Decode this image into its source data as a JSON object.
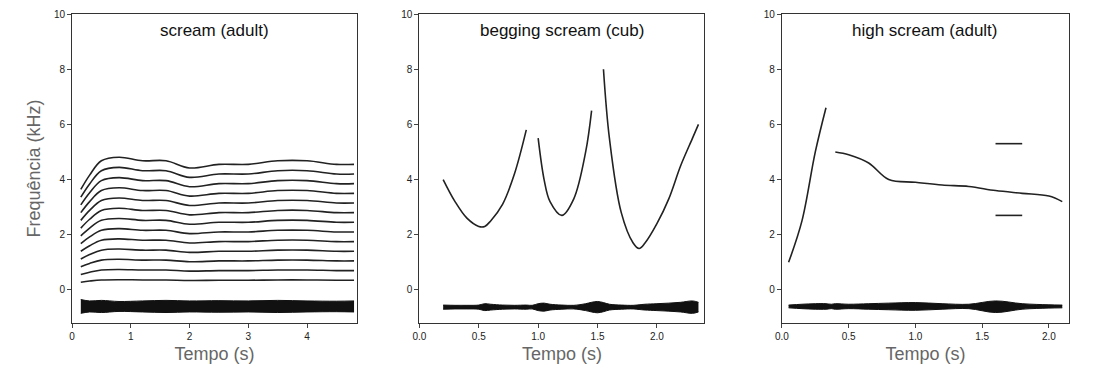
{
  "chart_data": [
    {
      "type": "line",
      "title": "scream (adult)",
      "xlabel": "Tempo (s)",
      "ylabel": "Frequência (kHz)",
      "xlim": [
        0,
        4.85
      ],
      "xticks": [
        0,
        1,
        2,
        3,
        4
      ],
      "ylim": [
        -1.2,
        10
      ],
      "yticks": [
        0,
        2,
        4,
        6,
        8,
        10
      ],
      "x": [
        0.15,
        0.3,
        0.5,
        0.8,
        1.2,
        1.6,
        2.0,
        2.5,
        3.0,
        3.5,
        4.0,
        4.5,
        4.8
      ],
      "series": [
        {
          "type": "line",
          "color": "#222222",
          "values": [
            0.28,
            0.32,
            0.36,
            0.37,
            0.36,
            0.36,
            0.34,
            0.35,
            0.35,
            0.36,
            0.36,
            0.35,
            0.35
          ]
        },
        {
          "type": "line",
          "color": "#222222",
          "values": [
            0.56,
            0.64,
            0.72,
            0.74,
            0.72,
            0.72,
            0.68,
            0.7,
            0.7,
            0.72,
            0.72,
            0.7,
            0.7
          ]
        },
        {
          "type": "line",
          "color": "#222222",
          "values": [
            0.84,
            0.96,
            1.08,
            1.11,
            1.08,
            1.08,
            1.02,
            1.05,
            1.05,
            1.08,
            1.08,
            1.05,
            1.05
          ]
        },
        {
          "type": "line",
          "color": "#222222",
          "values": [
            1.12,
            1.28,
            1.44,
            1.48,
            1.44,
            1.44,
            1.36,
            1.4,
            1.4,
            1.44,
            1.44,
            1.4,
            1.4
          ]
        },
        {
          "type": "line",
          "color": "#222222",
          "values": [
            1.4,
            1.6,
            1.8,
            1.85,
            1.8,
            1.8,
            1.7,
            1.75,
            1.75,
            1.8,
            1.8,
            1.75,
            1.75
          ]
        },
        {
          "type": "line",
          "color": "#222222",
          "values": [
            1.68,
            1.92,
            2.16,
            2.22,
            2.16,
            2.16,
            2.04,
            2.1,
            2.1,
            2.16,
            2.16,
            2.1,
            2.1
          ]
        },
        {
          "type": "line",
          "color": "#222222",
          "values": [
            1.96,
            2.24,
            2.52,
            2.59,
            2.52,
            2.52,
            2.38,
            2.45,
            2.45,
            2.52,
            2.52,
            2.45,
            2.45
          ]
        },
        {
          "type": "line",
          "color": "#222222",
          "values": [
            2.24,
            2.56,
            2.88,
            2.96,
            2.88,
            2.88,
            2.72,
            2.8,
            2.8,
            2.88,
            2.88,
            2.8,
            2.8
          ]
        },
        {
          "type": "line",
          "color": "#222222",
          "values": [
            2.52,
            2.88,
            3.24,
            3.33,
            3.24,
            3.24,
            3.06,
            3.15,
            3.15,
            3.24,
            3.24,
            3.15,
            3.15
          ]
        },
        {
          "type": "line",
          "color": "#222222",
          "values": [
            2.8,
            3.2,
            3.6,
            3.7,
            3.6,
            3.6,
            3.4,
            3.5,
            3.5,
            3.6,
            3.6,
            3.5,
            3.5
          ]
        },
        {
          "type": "line",
          "color": "#222222",
          "values": [
            3.08,
            3.52,
            3.96,
            4.07,
            3.96,
            3.96,
            3.74,
            3.85,
            3.85,
            3.96,
            3.96,
            3.85,
            3.85
          ]
        },
        {
          "type": "line",
          "color": "#222222",
          "values": [
            3.36,
            3.84,
            4.32,
            4.44,
            4.32,
            4.32,
            4.08,
            4.2,
            4.2,
            4.32,
            4.32,
            4.2,
            4.2
          ]
        },
        {
          "type": "line",
          "color": "#222222",
          "values": [
            3.64,
            4.16,
            4.68,
            4.81,
            4.68,
            4.68,
            4.42,
            4.55,
            4.55,
            4.68,
            4.68,
            4.55,
            4.55
          ]
        },
        {
          "type": "band",
          "color": "#111111",
          "values": [
            -0.35,
            -0.4,
            -0.38,
            -0.42,
            -0.4,
            -0.38,
            -0.4,
            -0.39,
            -0.4,
            -0.38,
            -0.4,
            -0.41,
            -0.4
          ]
        },
        {
          "type": "band",
          "color": "#111111",
          "values": [
            -0.85,
            -0.8,
            -0.82,
            -0.78,
            -0.8,
            -0.82,
            -0.8,
            -0.81,
            -0.8,
            -0.82,
            -0.8,
            -0.79,
            -0.8
          ]
        }
      ]
    },
    {
      "type": "line",
      "title": "begging scream (cub)",
      "xlabel": "Tempo (s)",
      "xlim": [
        0,
        2.4
      ],
      "xticks": [
        {
          "value": 0,
          "label": "0.0"
        },
        {
          "value": 0.5,
          "label": "0.5"
        },
        {
          "value": 1,
          "label": "1.0"
        },
        {
          "value": 1.5,
          "label": "1.5"
        },
        {
          "value": 2,
          "label": "2.0"
        }
      ],
      "ylim": [
        -1.2,
        10
      ],
      "yticks": [
        0,
        2,
        4,
        6,
        8,
        10
      ],
      "x": [
        0.2,
        0.3,
        0.4,
        0.5,
        0.55,
        0.6,
        0.7,
        0.8,
        0.9,
        0.95,
        1.0,
        1.05,
        1.1,
        1.2,
        1.3,
        1.4,
        1.45,
        1.5,
        1.55,
        1.6,
        1.7,
        1.8,
        1.85,
        1.9,
        2.0,
        2.1,
        2.2,
        2.3,
        2.35
      ],
      "series": [
        {
          "type": "line",
          "color": "#222222",
          "values": [
            4.0,
            3.2,
            2.6,
            2.3,
            2.3,
            2.5,
            3.1,
            4.2,
            5.8,
            null,
            5.5,
            4.0,
            3.2,
            2.7,
            3.3,
            5.0,
            6.5,
            null,
            8.0,
            5.5,
            2.8,
            1.7,
            1.5,
            1.7,
            2.4,
            3.3,
            4.5,
            5.5,
            6.0
          ]
        },
        {
          "type": "band",
          "color": "#111111",
          "values": [
            -0.55,
            -0.56,
            -0.56,
            -0.55,
            -0.5,
            -0.52,
            -0.55,
            -0.56,
            -0.55,
            -0.56,
            -0.5,
            -0.48,
            -0.52,
            -0.55,
            -0.56,
            -0.5,
            -0.45,
            -0.42,
            -0.46,
            -0.52,
            -0.55,
            -0.56,
            -0.54,
            -0.52,
            -0.5,
            -0.48,
            -0.45,
            -0.4,
            -0.45
          ]
        },
        {
          "type": "band",
          "color": "#111111",
          "values": [
            -0.7,
            -0.69,
            -0.69,
            -0.7,
            -0.75,
            -0.73,
            -0.7,
            -0.69,
            -0.7,
            -0.69,
            -0.75,
            -0.77,
            -0.73,
            -0.7,
            -0.69,
            -0.75,
            -0.8,
            -0.83,
            -0.79,
            -0.73,
            -0.7,
            -0.69,
            -0.71,
            -0.73,
            -0.75,
            -0.77,
            -0.8,
            -0.85,
            -0.8
          ]
        }
      ]
    },
    {
      "type": "line",
      "title": "high scream (adult)",
      "xlabel": "Tempo (s)",
      "xlim": [
        0,
        2.15
      ],
      "xticks": [
        {
          "value": 0,
          "label": "0.0"
        },
        {
          "value": 0.5,
          "label": "0.5"
        },
        {
          "value": 1,
          "label": "1.0"
        },
        {
          "value": 1.5,
          "label": "1.5"
        },
        {
          "value": 2,
          "label": "2.0"
        }
      ],
      "ylim": [
        -1.2,
        10
      ],
      "yticks": [
        0,
        2,
        4,
        6,
        8,
        10
      ],
      "x": [
        0.05,
        0.15,
        0.25,
        0.33,
        0.37,
        0.4,
        0.5,
        0.65,
        0.8,
        1.0,
        1.2,
        1.4,
        1.6,
        1.8,
        2.0,
        2.1
      ],
      "series": [
        {
          "type": "line",
          "color": "#222222",
          "values": [
            1.0,
            2.5,
            5.0,
            6.6,
            null,
            5.0,
            4.9,
            4.6,
            4.0,
            3.9,
            3.8,
            3.75,
            3.6,
            3.5,
            3.4,
            3.2
          ]
        },
        {
          "type": "line",
          "color": "#222222",
          "values": [
            null,
            null,
            null,
            null,
            null,
            null,
            null,
            null,
            null,
            null,
            null,
            null,
            5.3,
            5.3,
            null,
            null
          ]
        },
        {
          "type": "line",
          "color": "#222222",
          "values": [
            null,
            null,
            null,
            null,
            null,
            null,
            null,
            null,
            null,
            null,
            null,
            null,
            2.7,
            2.7,
            null,
            null
          ]
        },
        {
          "type": "band",
          "color": "#111111",
          "values": [
            -0.55,
            -0.52,
            -0.5,
            -0.5,
            -0.52,
            -0.5,
            -0.52,
            -0.5,
            -0.48,
            -0.46,
            -0.5,
            -0.52,
            -0.4,
            -0.5,
            -0.54,
            -0.55
          ]
        },
        {
          "type": "band",
          "color": "#111111",
          "values": [
            -0.65,
            -0.68,
            -0.7,
            -0.7,
            -0.68,
            -0.7,
            -0.68,
            -0.7,
            -0.72,
            -0.74,
            -0.7,
            -0.68,
            -0.82,
            -0.7,
            -0.66,
            -0.65
          ]
        }
      ]
    }
  ]
}
